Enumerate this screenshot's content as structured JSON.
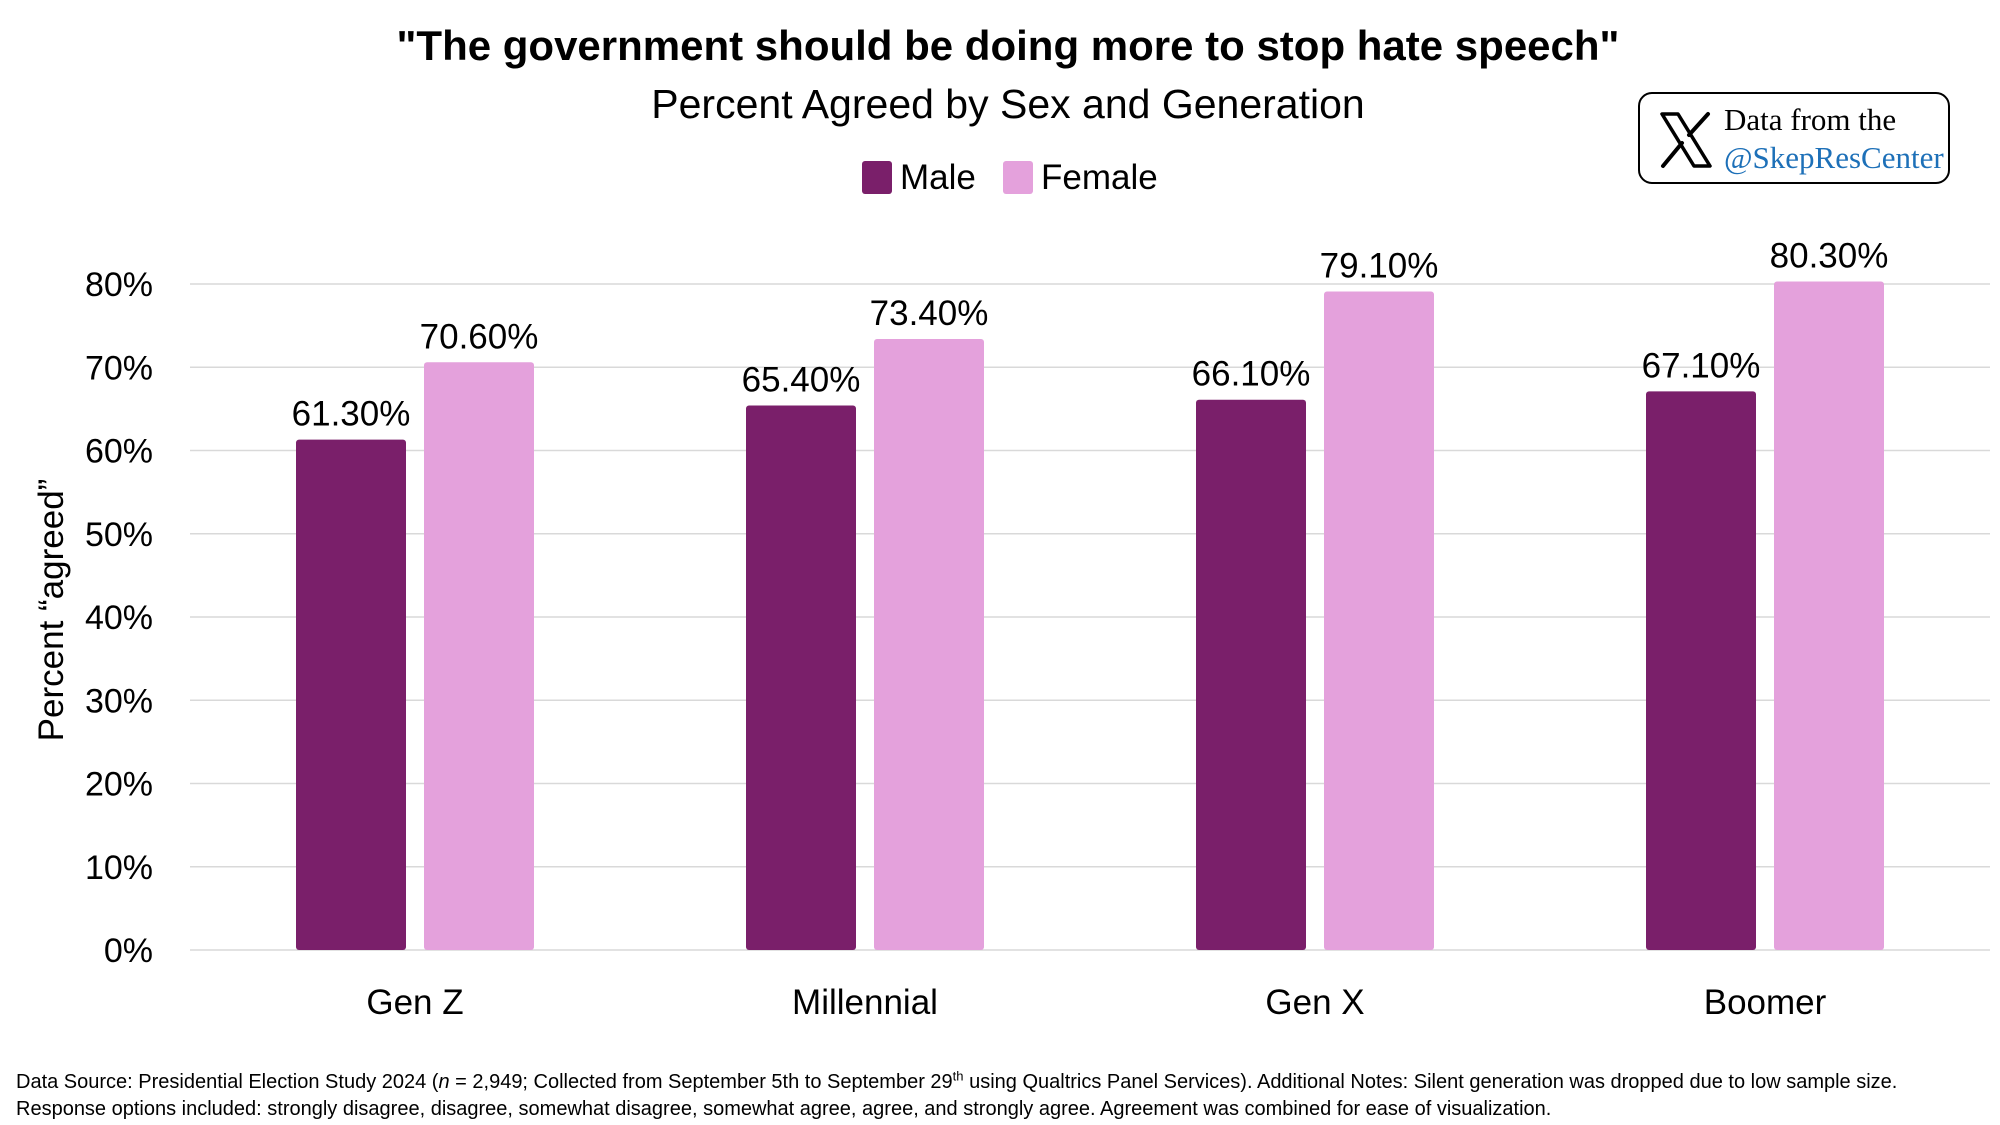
{
  "chart_data": {
    "type": "bar",
    "title": "\"The government should be doing more to stop hate speech\"",
    "subtitle": "Percent Agreed by Sex and Generation",
    "ylabel": "Percent “agreed”",
    "xlabel": "",
    "categories": [
      "Gen Z",
      "Millennial",
      "Gen X",
      "Boomer"
    ],
    "series": [
      {
        "name": "Male",
        "color": "#7a1f6a",
        "values": [
          61.3,
          65.4,
          66.1,
          67.1
        ],
        "labels": [
          "61.30%",
          "65.40%",
          "66.10%",
          "67.10%"
        ]
      },
      {
        "name": "Female",
        "color": "#e4a1dc",
        "values": [
          70.6,
          73.4,
          79.1,
          80.3
        ],
        "labels": [
          "70.60%",
          "73.40%",
          "79.10%",
          "80.30%"
        ]
      }
    ],
    "ylim": [
      0,
      80
    ],
    "yticks": [
      0,
      10,
      20,
      30,
      40,
      50,
      60,
      70,
      80
    ],
    "ytick_labels": [
      "0%",
      "10%",
      "20%",
      "30%",
      "40%",
      "50%",
      "60%",
      "70%",
      "80%"
    ],
    "grid": true,
    "legend_position": "top-center",
    "gridline_color": "#d9d9d9"
  },
  "credit": {
    "icon": "x-logo-icon",
    "line1": "Data from the",
    "line2": "@SkepResCenter",
    "handle_color": "#1d70b8"
  },
  "footnote": {
    "part1": "Data Source: Presidential Election Study 2024 (",
    "n_symbol": "n",
    "part2": " = 2,949; Collected from September 5th to September 29",
    "sup": "th",
    "part3": " using Qualtrics Panel Services). Additional Notes: Silent generation was dropped due to low sample size. Response options included: strongly disagree, disagree, somewhat disagree, somewhat agree, agree, and strongly agree. Agreement was combined for ease of visualization."
  }
}
